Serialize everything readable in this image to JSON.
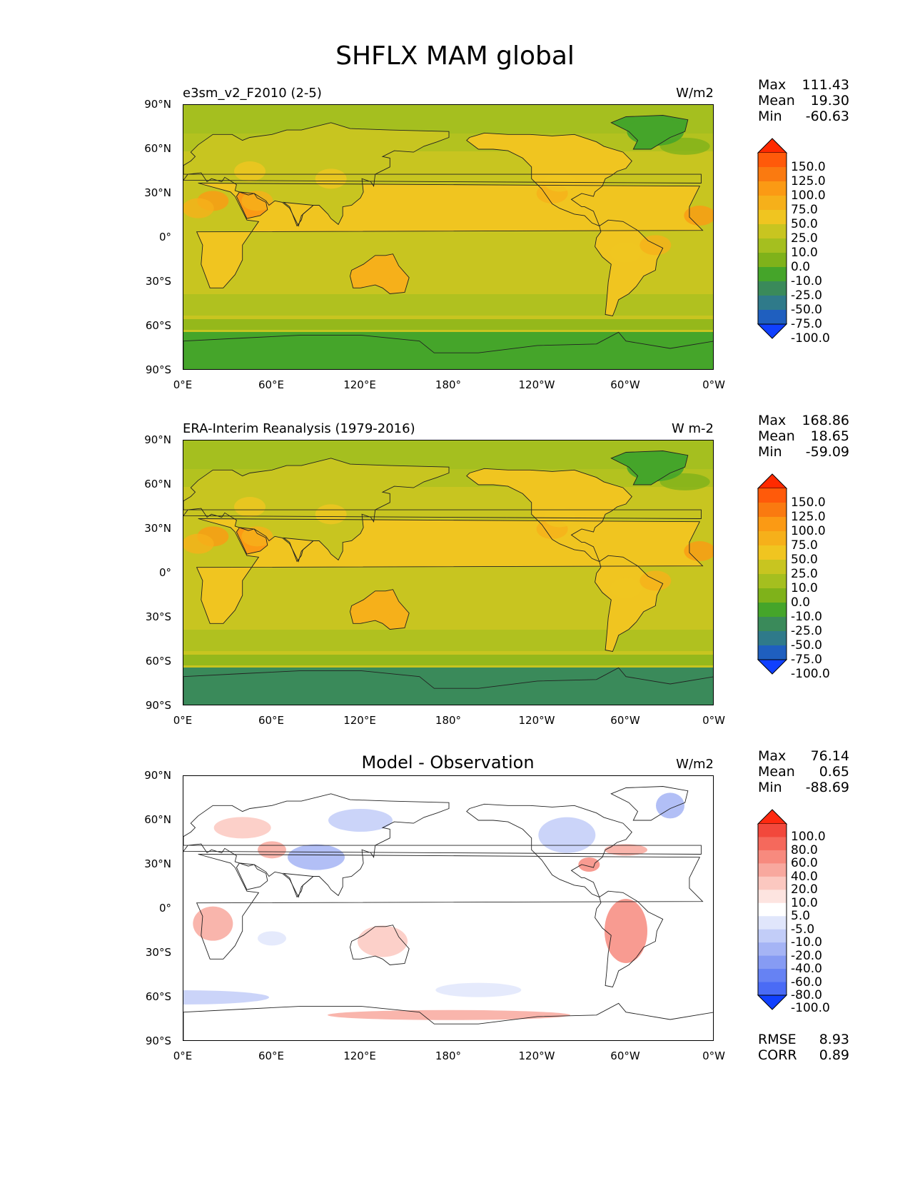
{
  "figure_title": "SHFLX MAM global",
  "lat_labels": [
    "90°N",
    "60°N",
    "30°N",
    "0°",
    "30°S",
    "60°S",
    "90°S"
  ],
  "lon_labels": [
    "0°E",
    "60°E",
    "120°E",
    "180°",
    "120°W",
    "60°W",
    "0°W"
  ],
  "panels": [
    {
      "title": "e3sm_v2_F2010 (2-5)",
      "units": "W/m2",
      "stats": {
        "max_label": "Max",
        "max": "111.43",
        "mean_label": "Mean",
        "mean": "19.30",
        "min_label": "Min",
        "min": "-60.63"
      },
      "colorbar": {
        "ticks": [
          "150.0",
          "125.0",
          "100.0",
          "75.0",
          "50.0",
          "25.0",
          "10.0",
          "0.0",
          "-10.0",
          "-25.0",
          "-50.0",
          "-75.0",
          "-100.0"
        ],
        "colors": [
          "#ff2a00",
          "#ff5a0a",
          "#fa7a10",
          "#fb9a14",
          "#f6b01a",
          "#f0c520",
          "#c8c520",
          "#a5bf1f",
          "#7fb21a",
          "#45a52a",
          "#3a8a5a",
          "#2f7a8a",
          "#1f5fbf",
          "#1040ff"
        ]
      },
      "style": "absolute"
    },
    {
      "title": "ERA-Interim Reanalysis (1979-2016)",
      "units": "W m-2",
      "stats": {
        "max_label": "Max",
        "max": "168.86",
        "mean_label": "Mean",
        "mean": "18.65",
        "min_label": "Min",
        "min": "-59.09"
      },
      "colorbar": {
        "ticks": [
          "150.0",
          "125.0",
          "100.0",
          "75.0",
          "50.0",
          "25.0",
          "10.0",
          "0.0",
          "-10.0",
          "-25.0",
          "-50.0",
          "-75.0",
          "-100.0"
        ],
        "colors": [
          "#ff2a00",
          "#ff5a0a",
          "#fa7a10",
          "#fb9a14",
          "#f6b01a",
          "#f0c520",
          "#c8c520",
          "#a5bf1f",
          "#7fb21a",
          "#45a52a",
          "#3a8a5a",
          "#2f7a8a",
          "#1f5fbf",
          "#1040ff"
        ]
      },
      "style": "absolute"
    },
    {
      "title": "Model - Observation",
      "units": "W/m2",
      "stats": {
        "max_label": "Max",
        "max": "76.14",
        "mean_label": "Mean",
        "mean": "0.65",
        "min_label": "Min",
        "min": "-88.69"
      },
      "colorbar": {
        "ticks": [
          "100.0",
          "80.0",
          "60.0",
          "40.0",
          "20.0",
          "10.0",
          "5.0",
          "-5.0",
          "-10.0",
          "-20.0",
          "-40.0",
          "-60.0",
          "-80.0",
          "-100.0"
        ],
        "colors": [
          "#ff2a10",
          "#f2483c",
          "#f5695c",
          "#f78a7e",
          "#f8a89e",
          "#fbc8c0",
          "#fde4e0",
          "#ffffff",
          "#e0e6fb",
          "#c2cdf8",
          "#a5b4f5",
          "#869bf3",
          "#6682f3",
          "#4a6bf5",
          "#1040ff"
        ]
      },
      "style": "diff",
      "rmse_label": "RMSE",
      "rmse": "8.93",
      "corr_label": "CORR",
      "corr": "0.89"
    }
  ]
}
